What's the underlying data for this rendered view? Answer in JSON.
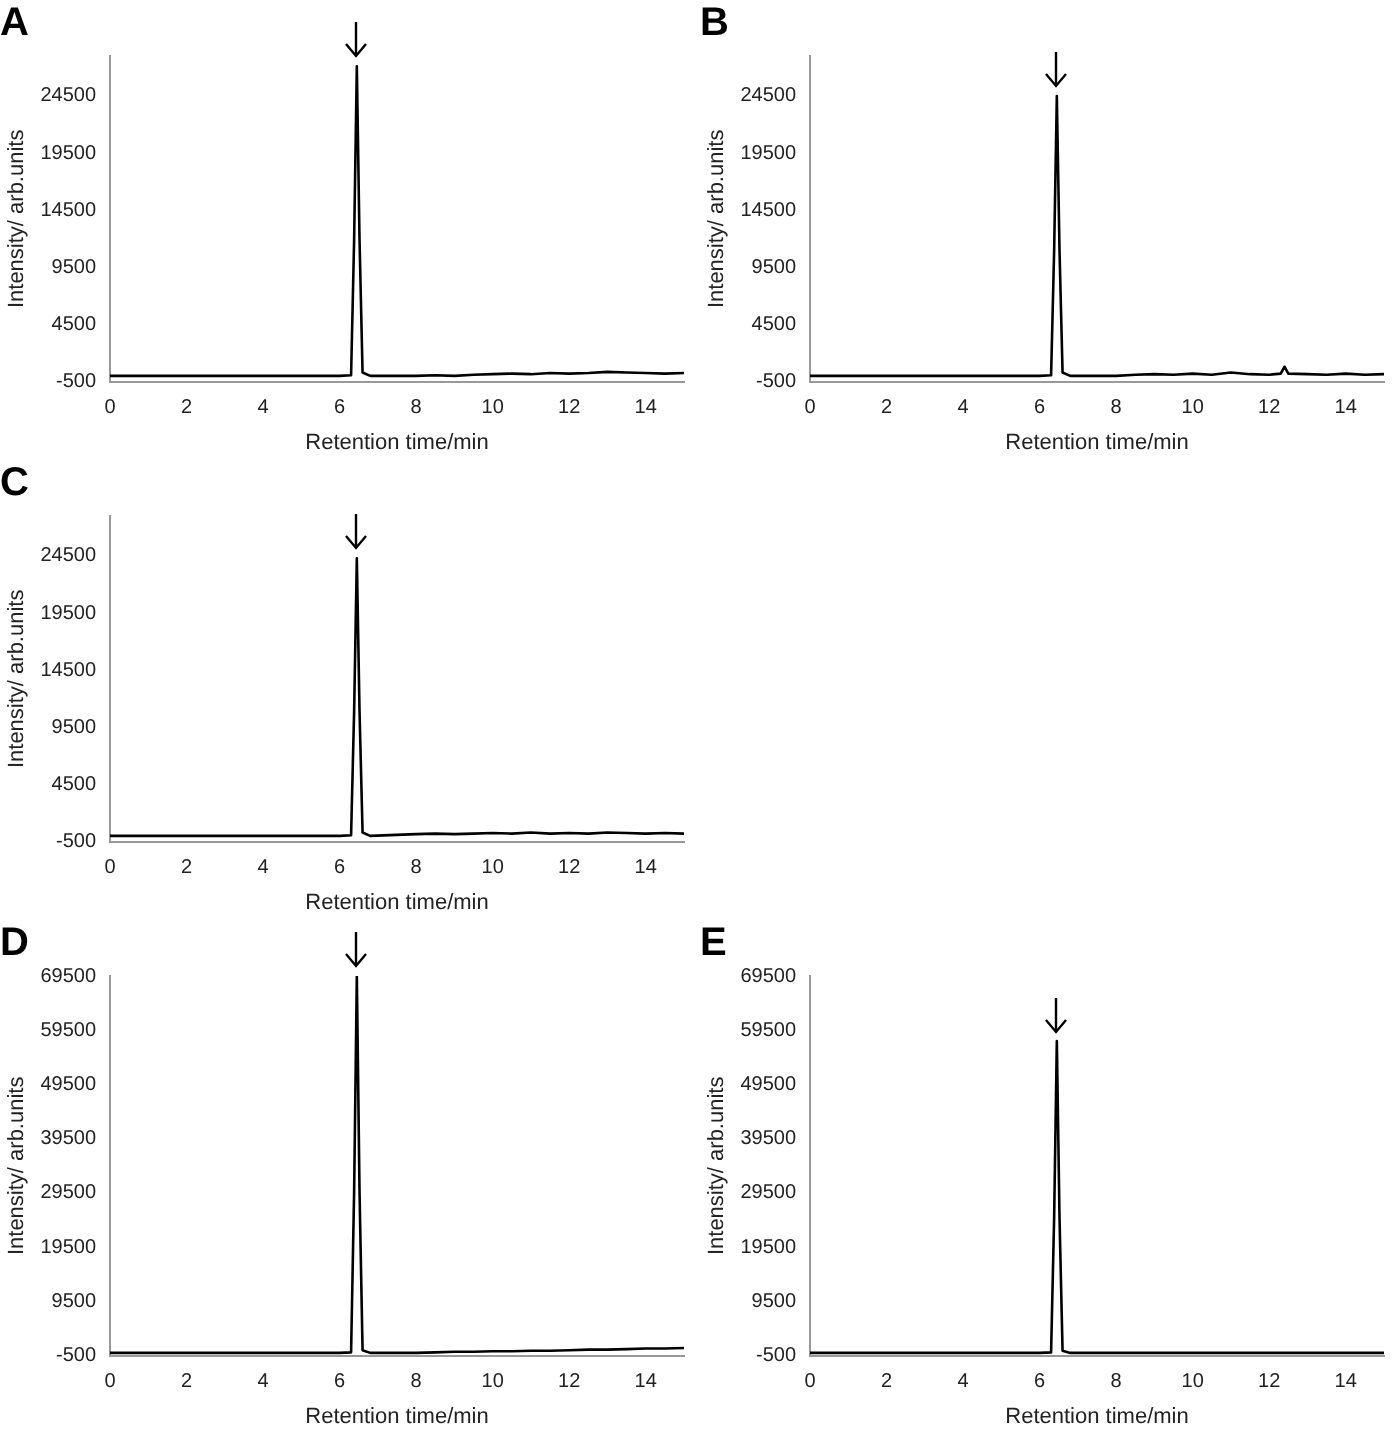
{
  "chart_data": [
    {
      "type": "line",
      "title": "A",
      "xlabel": "Retention time/min",
      "ylabel": "Intensity/ arb.units",
      "xlim": [
        0,
        15
      ],
      "xticks": [
        0,
        2,
        4,
        6,
        8,
        10,
        12,
        14
      ],
      "ylim": [
        -500,
        28000
      ],
      "yticks": [
        -500,
        4500,
        9500,
        14500,
        19500,
        24500
      ],
      "grid": false,
      "marker": "none",
      "series": [
        {
          "color": "#000000",
          "x": [
            0,
            2,
            4,
            6,
            6.3,
            6.38,
            6.45,
            6.52,
            6.6,
            6.8,
            8,
            8.5,
            9,
            9.5,
            10,
            10.5,
            11,
            11.5,
            12,
            12.5,
            13,
            13.5,
            14,
            14.5,
            15
          ],
          "values": [
            0,
            0,
            0,
            0,
            50,
            12000,
            27100,
            12000,
            300,
            0,
            0,
            50,
            0,
            100,
            150,
            200,
            150,
            250,
            200,
            250,
            350,
            300,
            250,
            200,
            250
          ]
        }
      ]
    },
    {
      "type": "line",
      "title": "B",
      "xlabel": "Retention time/min",
      "ylabel": "Intensity/ arb.units",
      "xlim": [
        0,
        15
      ],
      "xticks": [
        0,
        2,
        4,
        6,
        8,
        10,
        12,
        14
      ],
      "ylim": [
        -500,
        28000
      ],
      "yticks": [
        -500,
        4500,
        9500,
        14500,
        19500,
        24500
      ],
      "grid": false,
      "marker": "none",
      "series": [
        {
          "color": "#000000",
          "x": [
            0,
            2,
            4,
            6,
            6.3,
            6.38,
            6.45,
            6.52,
            6.6,
            6.8,
            8,
            8.5,
            9,
            9.5,
            10,
            10.5,
            11,
            11.5,
            12,
            12.3,
            12.4,
            12.5,
            13,
            13.5,
            14,
            14.5,
            15
          ],
          "values": [
            0,
            0,
            0,
            0,
            50,
            11000,
            24500,
            11000,
            300,
            0,
            0,
            100,
            150,
            100,
            200,
            100,
            300,
            150,
            100,
            200,
            800,
            200,
            150,
            100,
            200,
            100,
            150
          ]
        }
      ]
    },
    {
      "type": "line",
      "title": "C",
      "xlabel": "Retention time/min",
      "ylabel": "Intensity/ arb.units",
      "xlim": [
        0,
        15
      ],
      "xticks": [
        0,
        2,
        4,
        6,
        8,
        10,
        12,
        14
      ],
      "ylim": [
        -500,
        28000
      ],
      "yticks": [
        -500,
        4500,
        9500,
        14500,
        19500,
        24500
      ],
      "grid": false,
      "marker": "none",
      "series": [
        {
          "color": "#000000",
          "x": [
            0,
            2,
            4,
            6,
            6.3,
            6.38,
            6.45,
            6.52,
            6.6,
            6.8,
            8,
            8.5,
            9,
            9.5,
            10,
            10.5,
            11,
            11.5,
            12,
            12.5,
            13,
            13.5,
            14,
            14.5,
            15
          ],
          "values": [
            0,
            0,
            0,
            0,
            50,
            11000,
            24300,
            11000,
            300,
            0,
            150,
            200,
            150,
            200,
            250,
            200,
            300,
            200,
            250,
            200,
            300,
            250,
            200,
            250,
            200
          ]
        }
      ]
    },
    {
      "type": "line",
      "title": "D",
      "xlabel": "Retention time/min",
      "ylabel": "Intensity/ arb.units",
      "xlim": [
        0,
        15
      ],
      "xticks": [
        0,
        2,
        4,
        6,
        8,
        10,
        12,
        14
      ],
      "ylim": [
        -500,
        69500
      ],
      "yticks": [
        -500,
        9500,
        19500,
        29500,
        39500,
        49500,
        59500,
        69500
      ],
      "grid": false,
      "marker": "none",
      "series": [
        {
          "color": "#000000",
          "x": [
            0,
            2,
            4,
            6,
            6.3,
            6.38,
            6.45,
            6.52,
            6.6,
            6.8,
            8,
            8.5,
            9,
            9.5,
            10,
            10.5,
            11,
            11.5,
            12,
            12.5,
            13,
            13.5,
            14,
            14.5,
            15
          ],
          "values": [
            0,
            0,
            0,
            0,
            100,
            30000,
            69500,
            30000,
            500,
            0,
            0,
            100,
            200,
            200,
            300,
            300,
            400,
            400,
            500,
            600,
            600,
            700,
            800,
            800,
            900
          ]
        }
      ]
    },
    {
      "type": "line",
      "title": "E",
      "xlabel": "Retention time/min",
      "ylabel": "Intensity/ arb.units",
      "xlim": [
        0,
        15
      ],
      "xticks": [
        0,
        2,
        4,
        6,
        8,
        10,
        12,
        14
      ],
      "ylim": [
        -500,
        69500
      ],
      "yticks": [
        -500,
        9500,
        19500,
        29500,
        39500,
        49500,
        59500,
        69500
      ],
      "grid": false,
      "marker": "none",
      "series": [
        {
          "color": "#000000",
          "x": [
            0,
            2,
            4,
            6,
            6.3,
            6.38,
            6.45,
            6.52,
            6.6,
            6.8,
            8,
            10,
            12,
            14,
            15
          ],
          "values": [
            0,
            0,
            0,
            0,
            100,
            25000,
            57500,
            25000,
            400,
            0,
            0,
            0,
            0,
            0,
            0
          ]
        }
      ]
    }
  ]
}
